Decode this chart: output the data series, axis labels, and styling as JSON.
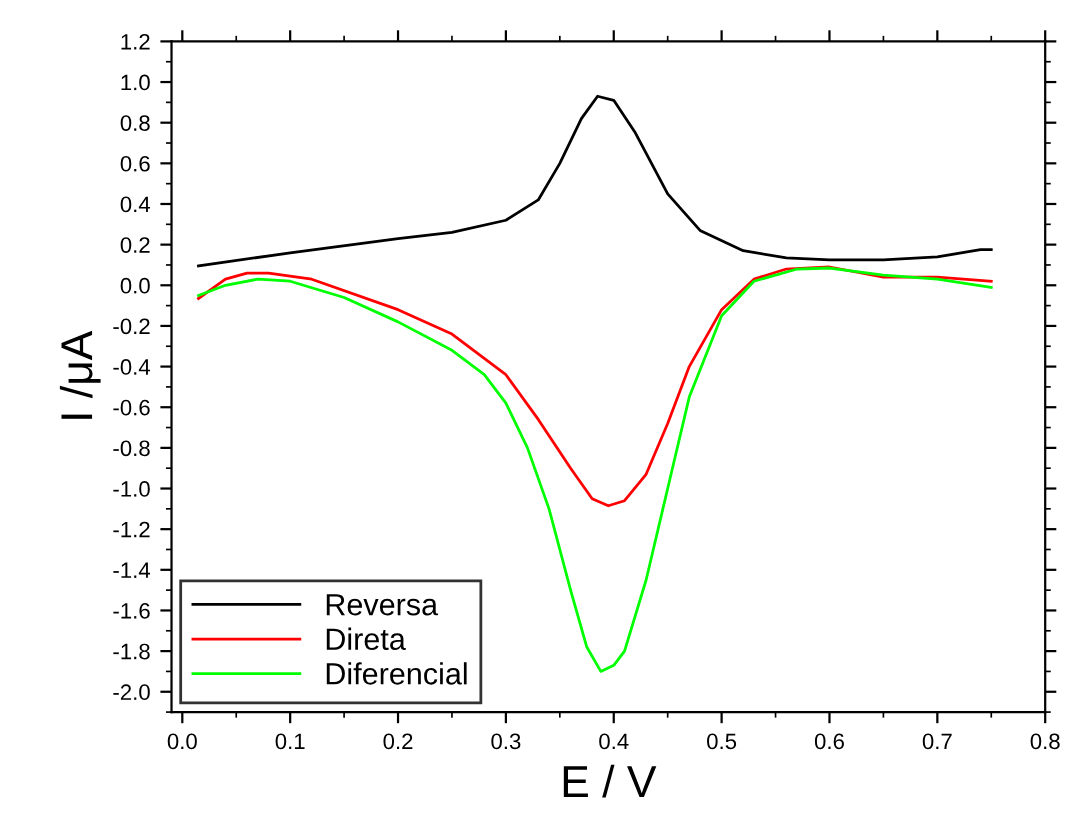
{
  "chart_data": {
    "type": "line",
    "xlabel": "E / V",
    "ylabel": "I /μA",
    "xlim": [
      -0.01,
      0.8
    ],
    "xticks": [
      {
        "value": 0,
        "label": "0.0"
      },
      0.1,
      0.2,
      0.3,
      0.4,
      0.5,
      0.6,
      0.7,
      0.8
    ],
    "ylim": [
      -2.1,
      1.2
    ],
    "yticks": [
      {
        "value": -2,
        "label": "-2.0"
      },
      -1.8,
      -1.6,
      -1.4,
      -1.2,
      {
        "value": -1,
        "label": "-1.0"
      },
      -0.8,
      -0.6,
      -0.4,
      -0.2,
      {
        "value": 0,
        "label": "0.0"
      },
      0.2,
      0.4,
      0.6,
      0.8,
      {
        "value": 1,
        "label": "1.0"
      },
      1.2
    ],
    "grid": false,
    "legend": "bottom left",
    "marker": "none",
    "line_style": "solid",
    "series": [
      {
        "name": "Reversa",
        "color": "#000000",
        "x": [
          0.015,
          0.1,
          0.2,
          0.25,
          0.3,
          0.33,
          0.35,
          0.37,
          0.385,
          0.4,
          0.42,
          0.45,
          0.48,
          0.52,
          0.56,
          0.6,
          0.65,
          0.7,
          0.74,
          0.75
        ],
        "values": [
          0.095,
          0.16,
          0.23,
          0.26,
          0.32,
          0.42,
          0.6,
          0.82,
          0.93,
          0.91,
          0.75,
          0.45,
          0.27,
          0.17,
          0.135,
          0.125,
          0.125,
          0.14,
          0.175,
          0.175
        ]
      },
      {
        "name": "Direta",
        "color": "#ff0000",
        "x": [
          0.015,
          0.04,
          0.06,
          0.08,
          0.12,
          0.2,
          0.25,
          0.3,
          0.33,
          0.36,
          0.38,
          0.395,
          0.41,
          0.43,
          0.45,
          0.47,
          0.5,
          0.53,
          0.56,
          0.6,
          0.65,
          0.7,
          0.75
        ],
        "values": [
          -0.065,
          0.03,
          0.06,
          0.06,
          0.03,
          -0.12,
          -0.24,
          -0.44,
          -0.66,
          -0.9,
          -1.05,
          -1.085,
          -1.06,
          -0.93,
          -0.68,
          -0.4,
          -0.12,
          0.03,
          0.08,
          0.09,
          0.04,
          0.04,
          0.02
        ]
      },
      {
        "name": "Diferencial",
        "color": "#00ff00",
        "x": [
          0.015,
          0.04,
          0.07,
          0.1,
          0.15,
          0.2,
          0.25,
          0.28,
          0.3,
          0.32,
          0.34,
          0.36,
          0.375,
          0.388,
          0.4,
          0.41,
          0.43,
          0.45,
          0.47,
          0.5,
          0.53,
          0.57,
          0.6,
          0.65,
          0.7,
          0.75
        ],
        "values": [
          -0.05,
          0.0,
          0.03,
          0.02,
          -0.06,
          -0.18,
          -0.32,
          -0.44,
          -0.58,
          -0.8,
          -1.1,
          -1.5,
          -1.78,
          -1.9,
          -1.87,
          -1.8,
          -1.45,
          -1.0,
          -0.55,
          -0.15,
          0.02,
          0.08,
          0.085,
          0.05,
          0.03,
          -0.01
        ]
      }
    ]
  }
}
